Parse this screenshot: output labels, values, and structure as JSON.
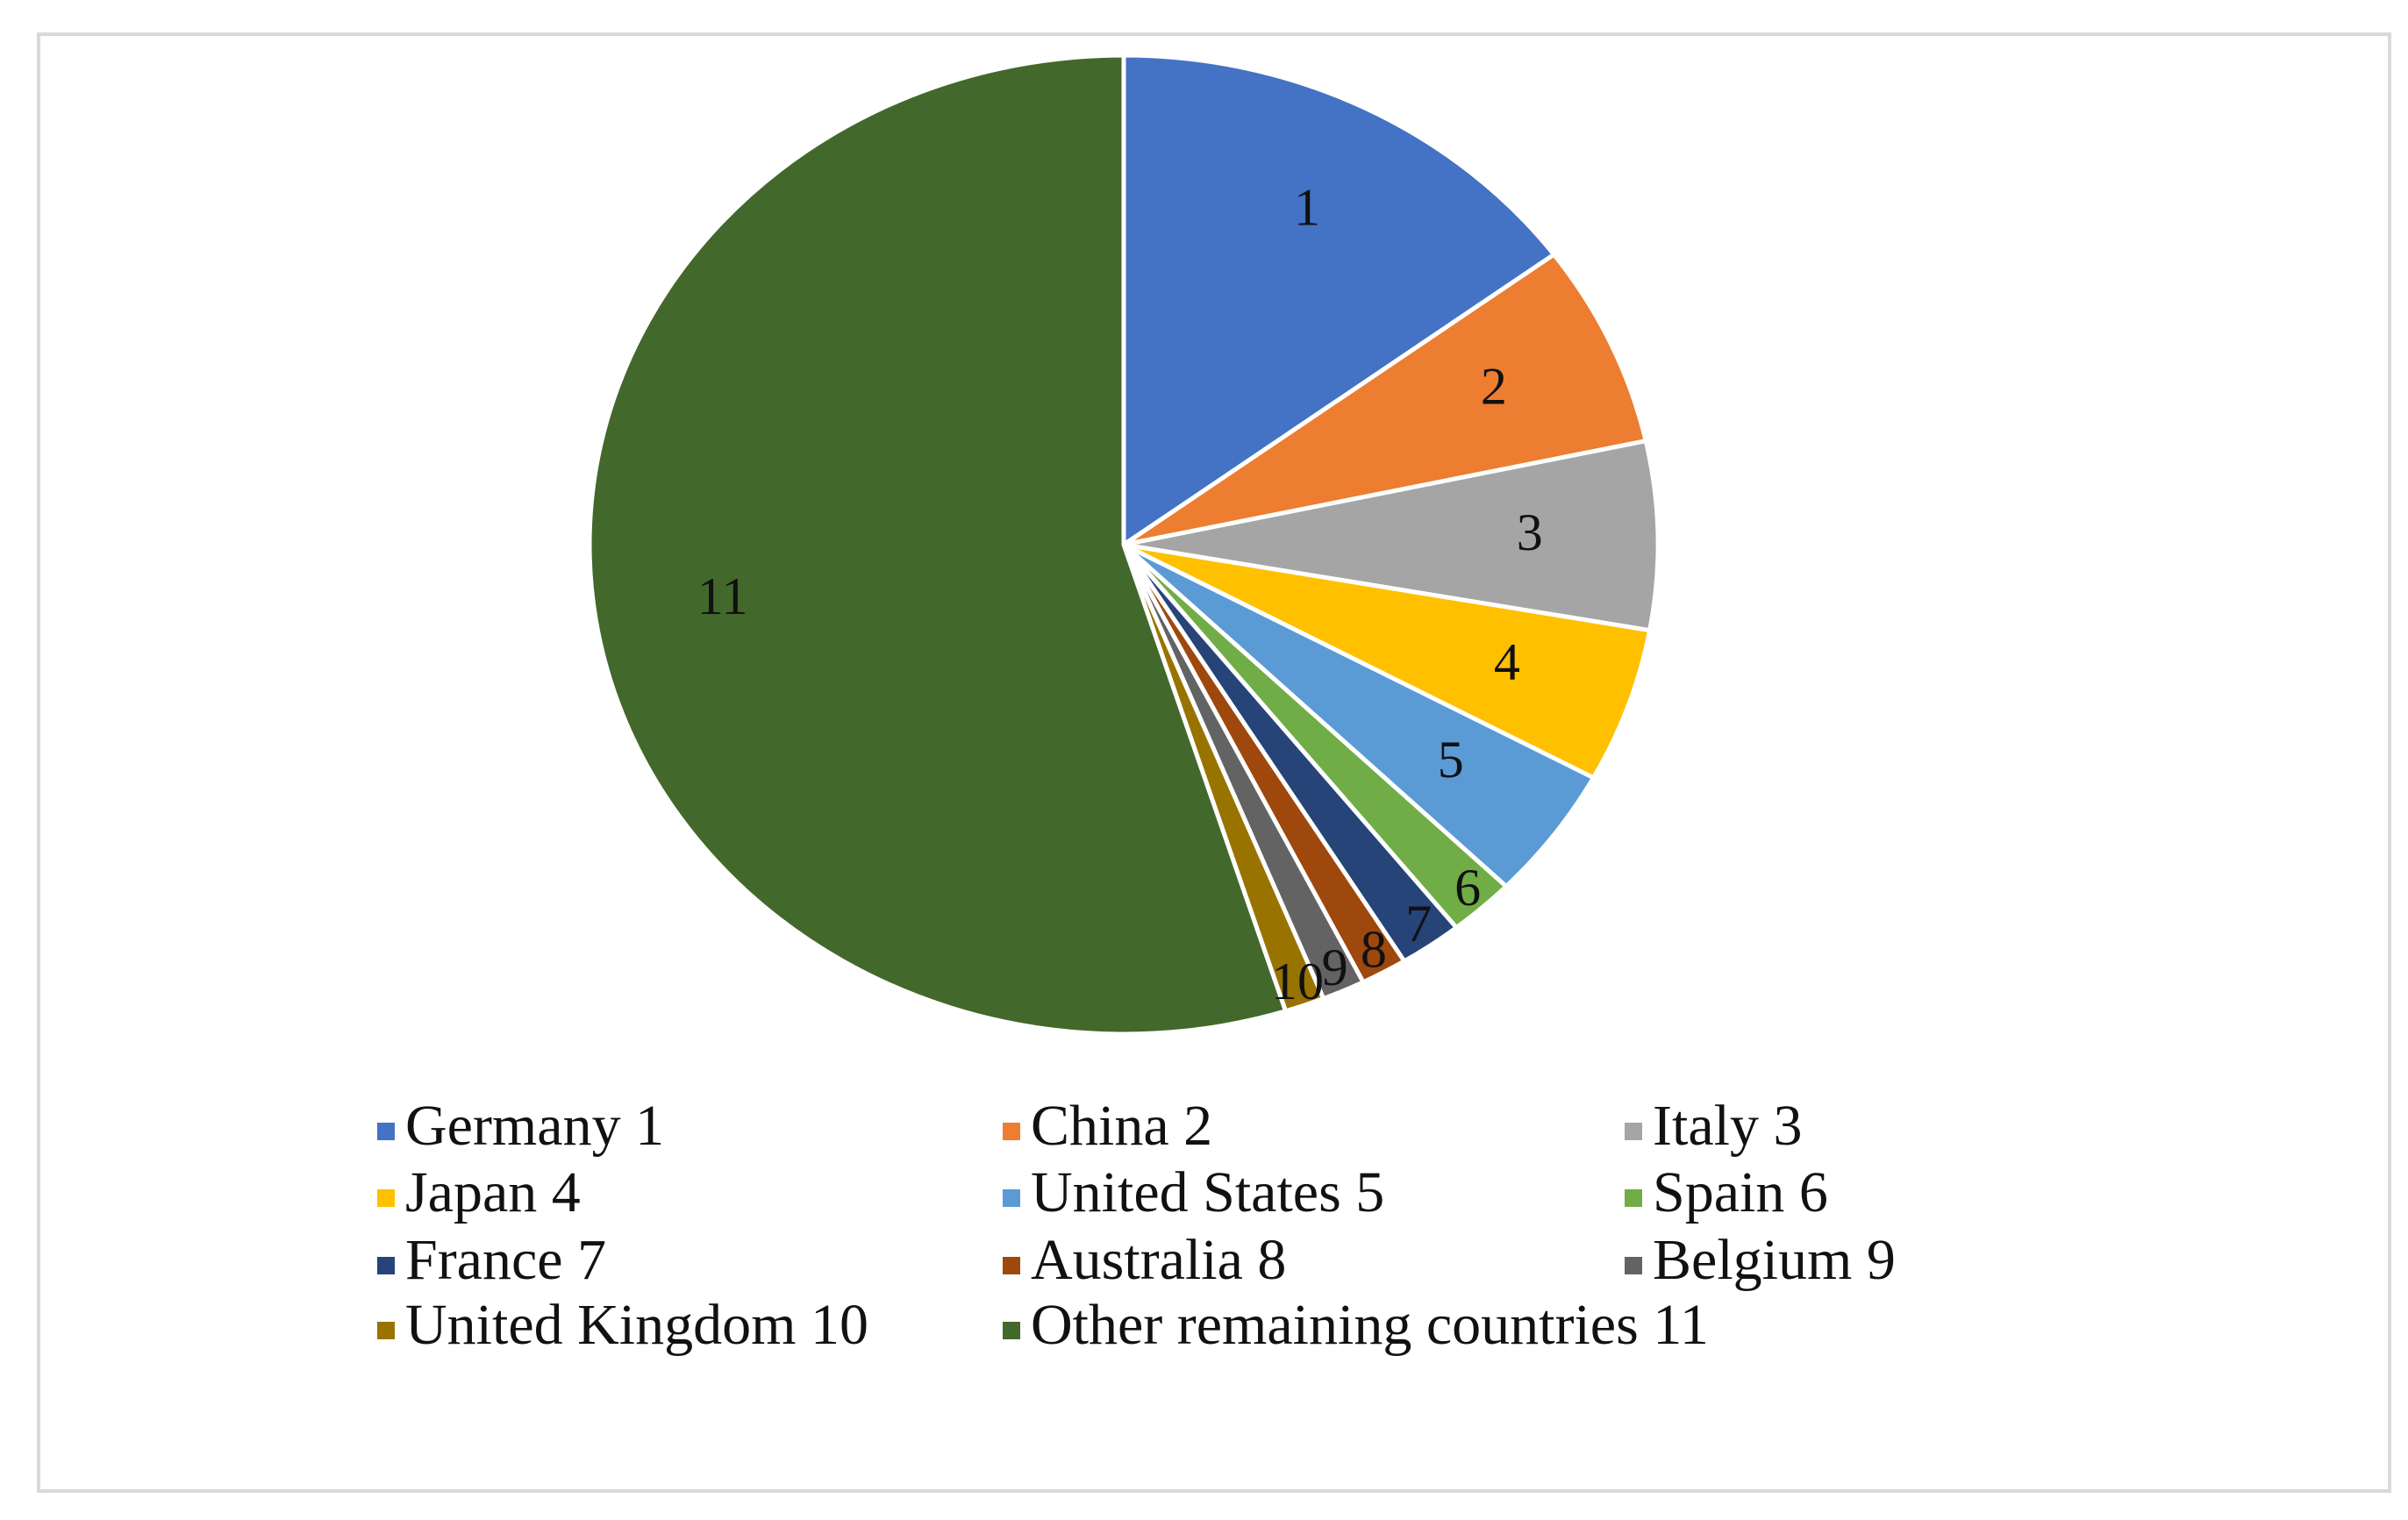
{
  "chart_data": {
    "type": "pie",
    "categories": [
      "Germany 1",
      "China 2",
      "Italy 3",
      "Japan 4",
      "United States 5",
      "Spain 6",
      "France 7",
      "Australia 8",
      "Belgium 9",
      "United Kingdom 10",
      "Other remaining countries 11"
    ],
    "values": [
      14.9,
      6.7,
      6.2,
      5.1,
      4.4,
      2.0,
      1.9,
      1.4,
      1.3,
      1.2,
      54.9
    ],
    "data_labels": [
      "1",
      "2",
      "3",
      "4",
      "5",
      "6",
      "7",
      "8",
      "9",
      "10",
      "11"
    ],
    "colors": [
      "#4472c4",
      "#ed7d31",
      "#a5a5a5",
      "#ffc000",
      "#5b9bd5",
      "#70ad47",
      "#264478",
      "#9e480e",
      "#636363",
      "#997300",
      "#43682b"
    ],
    "legend": "bottom"
  }
}
